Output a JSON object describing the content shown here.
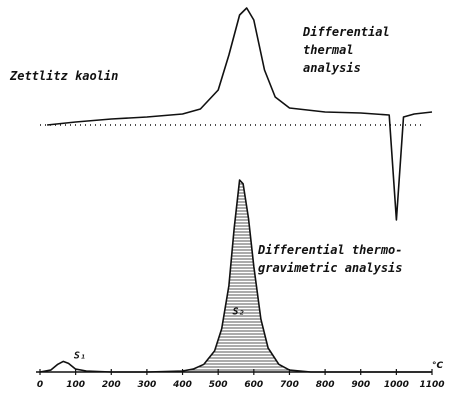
{
  "chart_data": [
    {
      "type": "line",
      "title": "Differential thermal analysis",
      "title_lines": [
        "Differential",
        "thermal",
        "analysis"
      ],
      "sample_label": "Zettlitz kaolin",
      "xlabel": "°C",
      "x": [
        20,
        100,
        200,
        300,
        400,
        450,
        500,
        530,
        560,
        580,
        600,
        630,
        660,
        700,
        800,
        900,
        980,
        1000,
        1020,
        1050,
        1100
      ],
      "y": [
        0,
        3,
        6,
        8,
        11,
        16,
        35,
        70,
        110,
        117,
        105,
        55,
        28,
        17,
        13,
        12,
        10,
        -95,
        8,
        11,
        13
      ],
      "xlim": [
        0,
        1100
      ],
      "grid": false
    },
    {
      "type": "area",
      "title": "Differential thermo-gravimetric analysis",
      "title_lines": [
        "Differential thermo-",
        "gravimetric analysis"
      ],
      "xlabel": "°C",
      "x_ticks": [
        "0",
        "100",
        "200",
        "300",
        "400",
        "500",
        "600",
        "700",
        "800",
        "900",
        "1000",
        "1100"
      ],
      "x": [
        0,
        30,
        50,
        65,
        80,
        100,
        130,
        200,
        300,
        400,
        430,
        460,
        490,
        510,
        530,
        545,
        560,
        570,
        585,
        600,
        620,
        640,
        670,
        700,
        760,
        900,
        1100
      ],
      "y": [
        0,
        2,
        8,
        11,
        9,
        3,
        1,
        0,
        0,
        1,
        3,
        8,
        22,
        45,
        90,
        150,
        200,
        196,
        160,
        110,
        55,
        25,
        8,
        2,
        0,
        0,
        0
      ],
      "xlim": [
        0,
        1100
      ],
      "annotations": [
        {
          "text": "S₁",
          "x": 95,
          "y": 10
        },
        {
          "text": "S₂",
          "x": 557,
          "y": 60
        }
      ],
      "grid": false
    }
  ]
}
